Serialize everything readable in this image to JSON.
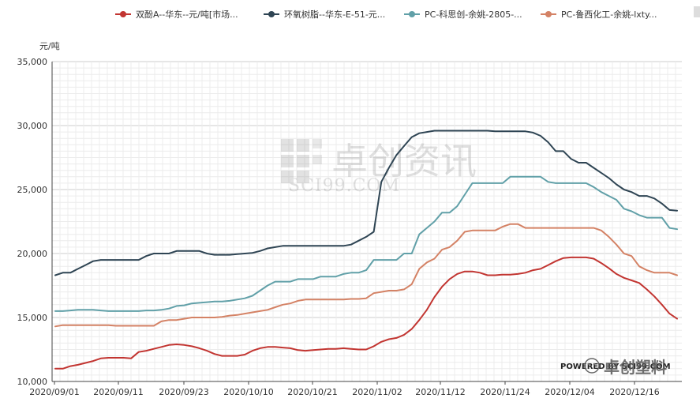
{
  "chart_data": {
    "type": "line",
    "ylabel": "元/吨",
    "ylim": [
      10000,
      35000
    ],
    "yticks": [
      10000,
      15000,
      20000,
      25000,
      30000,
      35000
    ],
    "ytick_labels": [
      "10,000",
      "15,000",
      "20,000",
      "25,000",
      "30,000",
      "35,000"
    ],
    "xtick_labels": [
      "2020/09/01",
      "2020/09/11",
      "2020/09/23",
      "2020/10/10",
      "2020/10/21",
      "2020/11/02",
      "2020/11/12",
      "2020/11/24",
      "2020/12/04",
      "2020/12/16"
    ],
    "grid": true,
    "legend_position": "top",
    "series": [
      {
        "name": "双酚A--华东--元/吨[市场...",
        "color": "#c23531",
        "values": [
          11000,
          11000,
          11200,
          11300,
          11450,
          11600,
          11800,
          11850,
          11850,
          11850,
          11800,
          12300,
          12400,
          12550,
          12700,
          12850,
          12900,
          12850,
          12750,
          12600,
          12400,
          12150,
          12000,
          12000,
          12000,
          12100,
          12400,
          12600,
          12700,
          12700,
          12650,
          12600,
          12450,
          12400,
          12450,
          12500,
          12550,
          12550,
          12600,
          12550,
          12500,
          12500,
          12750,
          13100,
          13300,
          13400,
          13650,
          14100,
          14800,
          15600,
          16600,
          17400,
          18000,
          18400,
          18600,
          18600,
          18500,
          18300,
          18300,
          18350,
          18350,
          18400,
          18500,
          18700,
          18800,
          19100,
          19400,
          19650,
          19700,
          19700,
          19700,
          19600,
          19250,
          18850,
          18400,
          18100,
          17900,
          17700,
          17200,
          16650,
          16000,
          15300,
          14900
        ]
      },
      {
        "name": "环氧树脂--华东-E-51-元...",
        "color": "#2f4554",
        "values": [
          18300,
          18500,
          18500,
          18800,
          19100,
          19400,
          19500,
          19500,
          19500,
          19500,
          19500,
          19500,
          19800,
          20000,
          20000,
          20000,
          20200,
          20200,
          20200,
          20200,
          20000,
          19900,
          19900,
          19900,
          19950,
          20000,
          20050,
          20200,
          20400,
          20500,
          20600,
          20600,
          20600,
          20600,
          20600,
          20600,
          20600,
          20600,
          20600,
          20700,
          21000,
          21300,
          21700,
          25600,
          26700,
          27700,
          28400,
          29100,
          29400,
          29500,
          29600,
          29600,
          29600,
          29600,
          29600,
          29600,
          29600,
          29600,
          29550,
          29550,
          29550,
          29550,
          29550,
          29450,
          29200,
          28700,
          28000,
          28000,
          27400,
          27100,
          27100,
          26700,
          26300,
          25900,
          25400,
          25000,
          24800,
          24500,
          24500,
          24300,
          23900,
          23400,
          23350
        ]
      },
      {
        "name": "PC-科思创-余姚-2805-...",
        "color": "#61a0a8",
        "values": [
          15500,
          15500,
          15550,
          15600,
          15600,
          15600,
          15550,
          15500,
          15500,
          15500,
          15500,
          15500,
          15550,
          15550,
          15600,
          15700,
          15900,
          15950,
          16100,
          16150,
          16200,
          16250,
          16250,
          16300,
          16400,
          16500,
          16700,
          17100,
          17500,
          17800,
          17800,
          17800,
          18000,
          18000,
          18000,
          18200,
          18200,
          18200,
          18400,
          18500,
          18500,
          18700,
          19500,
          19500,
          19500,
          19500,
          20000,
          20000,
          21500,
          22000,
          22500,
          23200,
          23200,
          23700,
          24600,
          25500,
          25500,
          25500,
          25500,
          25500,
          26000,
          26000,
          26000,
          26000,
          26000,
          25600,
          25500,
          25500,
          25500,
          25500,
          25500,
          25200,
          24800,
          24500,
          24200,
          23500,
          23300,
          23000,
          22800,
          22800,
          22800,
          22000,
          21900
        ]
      },
      {
        "name": "PC-鲁西化工-余姚-lxty...",
        "color": "#d48265",
        "values": [
          14300,
          14400,
          14400,
          14400,
          14400,
          14400,
          14400,
          14400,
          14350,
          14350,
          14350,
          14350,
          14350,
          14350,
          14700,
          14800,
          14800,
          14900,
          15000,
          15000,
          15000,
          15000,
          15050,
          15150,
          15200,
          15300,
          15400,
          15500,
          15600,
          15800,
          16000,
          16100,
          16300,
          16400,
          16400,
          16400,
          16400,
          16400,
          16400,
          16450,
          16450,
          16500,
          16900,
          17000,
          17100,
          17100,
          17200,
          17600,
          18800,
          19300,
          19600,
          20300,
          20500,
          21000,
          21700,
          21800,
          21800,
          21800,
          21800,
          22100,
          22300,
          22300,
          22000,
          22000,
          22000,
          22000,
          22000,
          22000,
          22000,
          22000,
          22000,
          22000,
          21800,
          21300,
          20700,
          20000,
          19800,
          19000,
          18700,
          18500,
          18500,
          18500,
          18300
        ]
      }
    ]
  },
  "watermark": {
    "cn_text": "卓创资讯",
    "en_text": "SCI99.COM",
    "powered_text": "POWERED BY SCI99.COM",
    "wechat_text": "卓创塑料"
  },
  "ui": {
    "legend_arrow_color": "#dddddd"
  }
}
